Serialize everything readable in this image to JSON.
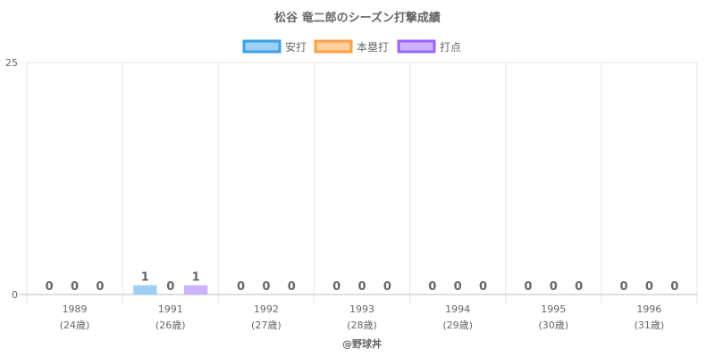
{
  "chart_data": {
    "type": "bar",
    "title": "松谷 竜二郎のシーズン打撃成績",
    "categories": [
      {
        "year": "1989",
        "age": "(24歳)"
      },
      {
        "year": "1991",
        "age": "(26歳)"
      },
      {
        "year": "1992",
        "age": "(27歳)"
      },
      {
        "year": "1993",
        "age": "(28歳)"
      },
      {
        "year": "1994",
        "age": "(29歳)"
      },
      {
        "year": "1995",
        "age": "(30歳)"
      },
      {
        "year": "1996",
        "age": "(31歳)"
      }
    ],
    "series": [
      {
        "name": "安打",
        "values": [
          0,
          1,
          0,
          0,
          0,
          0,
          0
        ],
        "fill": "#9ed0f5",
        "stroke": "#36a2eb"
      },
      {
        "name": "本塁打",
        "values": [
          0,
          0,
          0,
          0,
          0,
          0,
          0
        ],
        "fill": "#ffcf9f",
        "stroke": "#ff9f40"
      },
      {
        "name": "打点",
        "values": [
          0,
          1,
          0,
          0,
          0,
          0,
          0
        ],
        "fill": "#ccb2ff",
        "stroke": "#9966ff"
      }
    ],
    "ylim": [
      0,
      25
    ],
    "yticks": [
      "0",
      "25"
    ],
    "grid": true,
    "legend": "top-center",
    "footer": "@野球丼"
  }
}
